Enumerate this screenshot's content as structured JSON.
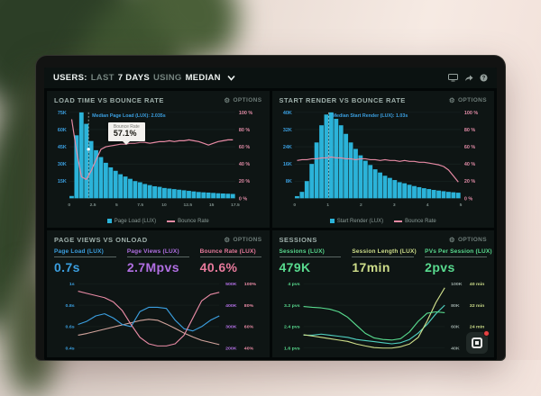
{
  "header": {
    "t1": "USERS:",
    "t2": "LAST",
    "t3": "7 DAYS",
    "t4": "USING",
    "t5": "MEDIAN"
  },
  "glyphs": {
    "gear": "⚙",
    "help": "?"
  },
  "colors": {
    "accent_cyan": "#2bb3d9",
    "accent_pink": "#e78aa4",
    "accent_blue": "#3b9fe0",
    "accent_purple": "#b16fe3",
    "accent_green": "#58da8e",
    "accent_yellow": "#cede8a",
    "panel_bg": "#0e1514",
    "screen_bg": "#070d0d"
  },
  "panels": {
    "load_time": {
      "title": "LOAD TIME VS BOUNCE RATE",
      "options": "OPTIONS"
    },
    "start_render": {
      "title": "START RENDER VS BOUNCE RATE",
      "options": "OPTIONS"
    },
    "page_views": {
      "title": "PAGE VIEWS VS ONLOAD",
      "options": "OPTIONS",
      "metrics": [
        {
          "label": "Page Load (LUX)",
          "value": "0.7s",
          "color": "#3b9fe0"
        },
        {
          "label": "Page Views (LUX)",
          "value": "2.7Mpvs",
          "color": "#b16fe3"
        },
        {
          "label": "Bounce Rate (LUX)",
          "value": "40.6%",
          "color": "#e87a9c"
        }
      ]
    },
    "sessions": {
      "title": "SESSIONS",
      "options": "OPTIONS",
      "metrics": [
        {
          "label": "Sessions (LUX)",
          "value": "479K",
          "color": "#58da8e"
        },
        {
          "label": "Session Length (LUX)",
          "value": "17min",
          "color": "#cede8a"
        },
        {
          "label": "PVs Per Session (LUX)",
          "value": "2pvs",
          "color": "#58da8e"
        }
      ]
    }
  },
  "chart_data": [
    {
      "kind": "hist",
      "type": "bar",
      "title": "LOAD TIME VS BOUNCE RATE",
      "xlabel": "Page Load time (s)",
      "x_min": 0,
      "x_max": 17.5,
      "x_ticks": [
        "0",
        "2.5",
        "5",
        "7.5",
        "10",
        "12.5",
        "15",
        "17.5"
      ],
      "left_ticks": [
        "75K",
        "60K",
        "45K",
        "30K",
        "15K"
      ],
      "left_max": 75,
      "left_unit": "K page views",
      "right_ticks": [
        "100 %",
        "80 %",
        "60 %",
        "40 %",
        "20 %",
        "0 %"
      ],
      "bars": {
        "name": "Page Load (LUX)",
        "color": "#2bb3d9",
        "values": [
          2,
          55,
          75,
          65,
          50,
          42,
          36,
          31,
          27,
          24,
          21,
          19,
          17,
          15,
          14,
          12.5,
          11.5,
          10.5,
          10,
          9,
          8.5,
          8,
          7.5,
          7,
          6.5,
          6,
          5.5,
          5.2,
          5,
          4.7,
          4.4,
          4.2,
          4,
          3.8
        ]
      },
      "line": {
        "name": "Bounce Rate",
        "color": "#e78aa4",
        "unit": "%",
        "values": [
          92,
          55,
          25,
          22,
          32,
          45,
          57,
          60,
          61,
          62,
          63,
          63,
          64,
          64,
          65,
          65,
          64,
          65,
          66,
          66,
          67,
          66,
          67,
          67,
          68,
          67,
          66,
          64,
          62,
          64,
          66,
          67,
          68,
          68
        ]
      },
      "median": {
        "x": 2.035,
        "label": "Median Page Load (LUX): 2.035s"
      },
      "tooltip": {
        "label": "Bounce Rate",
        "value": "57.1%"
      }
    },
    {
      "kind": "hist",
      "type": "bar",
      "title": "START RENDER VS BOUNCE RATE",
      "xlabel": "Start Render time (s)",
      "x_min": 0,
      "x_max": 5,
      "x_ticks": [
        "0",
        "1",
        "2",
        "3",
        "4",
        "5"
      ],
      "left_ticks": [
        "40K",
        "32K",
        "24K",
        "16K",
        "8K"
      ],
      "left_max": 40,
      "left_unit": "K page views",
      "right_ticks": [
        "100 %",
        "80 %",
        "60 %",
        "40 %",
        "20 %",
        "0 %"
      ],
      "bars": {
        "name": "Start Render (LUX)",
        "color": "#2bb3d9",
        "values": [
          1,
          3,
          8,
          16,
          26,
          34,
          39,
          40,
          37,
          34,
          30,
          26,
          23,
          20,
          17.5,
          15.5,
          13.5,
          12,
          10.5,
          9.5,
          8.5,
          7.5,
          7,
          6.3,
          5.7,
          5.2,
          4.7,
          4.3,
          3.9,
          3.6,
          3.3,
          3,
          2.8,
          2.6
        ]
      },
      "line": {
        "name": "Bounce Rate",
        "color": "#e78aa4",
        "unit": "%",
        "values": [
          44,
          45,
          45,
          46,
          46,
          47,
          47,
          48,
          47,
          47,
          46,
          46,
          45,
          46,
          46,
          45,
          45,
          44,
          45,
          44,
          44,
          43,
          44,
          43,
          43,
          42,
          42,
          41,
          40,
          39,
          37,
          33,
          26,
          19
        ]
      },
      "median": {
        "x": 1.03,
        "label": "Median Start Render (LUX): 1.03s"
      }
    },
    {
      "kind": "trend",
      "type": "line",
      "title": "PAGE VIEWS VS ONLOAD",
      "left_axis": {
        "color": "#3b9fe0",
        "labels": [
          "1s",
          "0.8s",
          "0.6s",
          "0.4s"
        ]
      },
      "right_axes": [
        {
          "color": "#b16fe3",
          "labels": [
            "500K",
            "400K",
            "300K",
            "200K"
          ]
        },
        {
          "color": "#e78aa4",
          "labels": [
            "100%",
            "80%",
            "60%",
            "40%"
          ]
        }
      ],
      "series": [
        {
          "name": "Page Views (LUX)",
          "color": "#d2a49c",
          "range": [
            200,
            500
          ],
          "values": [
            260,
            268,
            278,
            288,
            298,
            308,
            318,
            328,
            334,
            330,
            312,
            292,
            270,
            252,
            236,
            226,
            216
          ]
        },
        {
          "name": "Page Load (LUX)",
          "color": "#3b9fe0",
          "range": [
            0.4,
            1.0
          ],
          "values": [
            0.62,
            0.65,
            0.7,
            0.72,
            0.68,
            0.62,
            0.6,
            0.74,
            0.78,
            0.78,
            0.77,
            0.66,
            0.58,
            0.56,
            0.6,
            0.66,
            0.7
          ]
        },
        {
          "name": "Bounce Rate (LUX)",
          "color": "#e78aa4",
          "range": [
            40,
            100
          ],
          "values": [
            93,
            91,
            89,
            87,
            83,
            75,
            62,
            50,
            44,
            42,
            42,
            44,
            52,
            68,
            84,
            90,
            92
          ]
        }
      ]
    },
    {
      "kind": "trend",
      "type": "line",
      "title": "SESSIONS",
      "left_axis": {
        "color": "#58da8e",
        "labels": [
          "4 pvs",
          "3.2 pvs",
          "2.4 pvs",
          "1.6 pvs"
        ]
      },
      "right_axes": [
        {
          "color": "#9aa8a4",
          "labels": [
            "100K",
            "80K",
            "60K",
            "40K"
          ]
        },
        {
          "color": "#cede8a",
          "labels": [
            "40 min",
            "32 min",
            "24 min",
            "16 min"
          ]
        }
      ],
      "series": [
        {
          "name": "Sessions (LUX)",
          "color": "#4fd0c0",
          "range": [
            40,
            100
          ],
          "values": [
            52,
            52,
            53,
            52,
            51,
            50,
            48,
            47,
            46,
            45,
            44,
            45,
            48,
            54,
            62,
            72,
            80
          ]
        },
        {
          "name": "Session Length (LUX)",
          "color": "#cede8a",
          "range": [
            16,
            40
          ],
          "values": [
            21,
            20.5,
            20,
            19.5,
            19,
            18.5,
            17.5,
            16.8,
            16.2,
            16,
            16,
            16.5,
            17.5,
            20,
            26,
            33,
            38.5
          ]
        },
        {
          "name": "PVs Per Session (LUX)",
          "color": "#58da8e",
          "range": [
            1.6,
            4
          ],
          "values": [
            3.15,
            3.12,
            3.1,
            3.05,
            2.95,
            2.75,
            2.45,
            2.15,
            1.98,
            1.92,
            1.9,
            1.95,
            2.2,
            2.6,
            2.9,
            2.95,
            2.92
          ]
        }
      ]
    }
  ]
}
